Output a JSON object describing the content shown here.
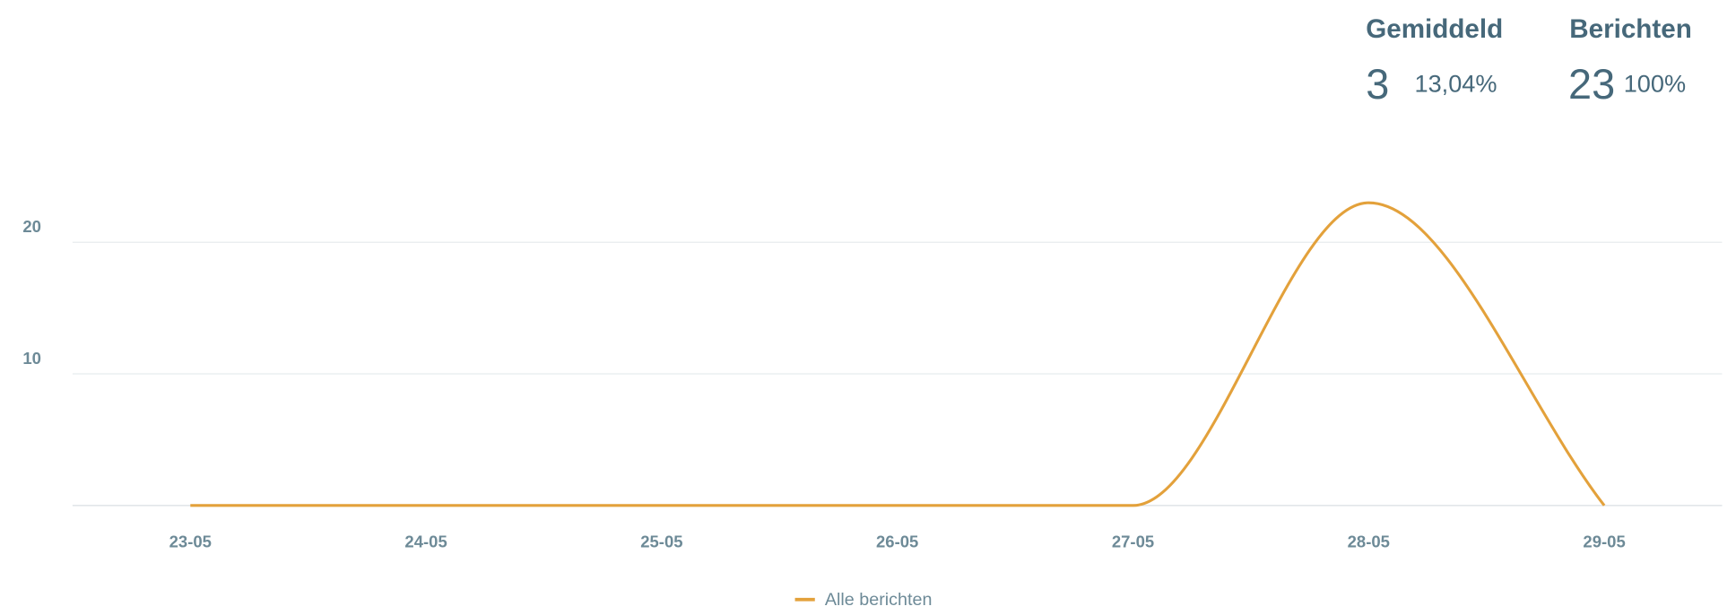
{
  "stats": [
    {
      "label": "Gemiddeld",
      "value": "3",
      "percent": "13,04%"
    },
    {
      "label": "Berichten",
      "value": "23",
      "percent": "100%"
    }
  ],
  "chart_data": {
    "type": "line",
    "categories": [
      "23-05",
      "24-05",
      "25-05",
      "26-05",
      "27-05",
      "28-05",
      "29-05"
    ],
    "series": [
      {
        "name": "Alle berichten",
        "color": "#e3a13b",
        "values": [
          0,
          0,
          0,
          0,
          0,
          23,
          0
        ]
      }
    ],
    "ylim": [
      0,
      25
    ],
    "yticks": [
      10,
      20
    ],
    "grid": true
  }
}
